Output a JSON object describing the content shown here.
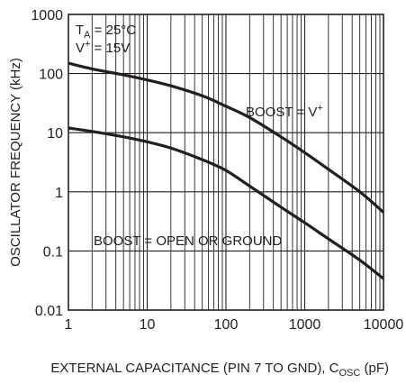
{
  "chart_data": {
    "type": "line",
    "x_scale": "log",
    "y_scale": "log",
    "xlim": [
      1,
      10000
    ],
    "ylim": [
      0.01,
      1000
    ],
    "grid": true,
    "xlabel": {
      "main": "EXTERNAL CAPACITANCE (PIN 7 TO GND), C",
      "sub": "OSC",
      "unit": " (pF)"
    },
    "ylabel": "OSCILLATOR FREQUENCY (kHz)",
    "x_ticks": [
      {
        "value": 1,
        "label": "1"
      },
      {
        "value": 10,
        "label": "10"
      },
      {
        "value": 100,
        "label": "100"
      },
      {
        "value": 1000,
        "label": "1000"
      },
      {
        "value": 10000,
        "label": "10000"
      }
    ],
    "y_ticks": [
      {
        "value": 1000,
        "label": "1000"
      },
      {
        "value": 100,
        "label": "100"
      },
      {
        "value": 10,
        "label": "10"
      },
      {
        "value": 1,
        "label": "1"
      },
      {
        "value": 0.1,
        "label": "0.1"
      },
      {
        "value": 0.01,
        "label": "0.01"
      }
    ],
    "conditions": {
      "ta_main": "T",
      "ta_sub": "A",
      "ta_rest": " = 25°C",
      "v_main": "V",
      "v_sup": "+",
      "v_rest": " = 15V"
    },
    "series": [
      {
        "name": "BOOST = V",
        "name_sup": "+",
        "x": [
          1,
          2,
          5,
          10,
          20,
          50,
          100,
          200,
          500,
          1000,
          2000,
          5000,
          10000
        ],
        "y": [
          150,
          120,
          95,
          78,
          62,
          42,
          28,
          18,
          8.5,
          4.6,
          2.4,
          1.0,
          0.45
        ]
      },
      {
        "name": "BOOST = OPEN OR GROUND",
        "x": [
          1,
          2,
          5,
          10,
          20,
          50,
          100,
          200,
          500,
          1000,
          2000,
          5000,
          10000
        ],
        "y": [
          12,
          10.5,
          8.5,
          7.0,
          5.5,
          3.5,
          2.3,
          1.25,
          0.55,
          0.3,
          0.16,
          0.07,
          0.034
        ]
      }
    ]
  }
}
